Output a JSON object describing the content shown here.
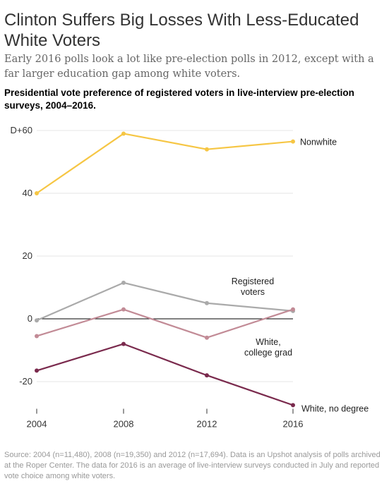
{
  "headline": "Clinton Suffers Big Losses With Less-Educated White Voters",
  "dek": "Early 2016 polls look a lot like pre-election polls in 2012, except with a far larger education gap among white voters.",
  "chart_data": {
    "type": "line",
    "title": "Presidential vote preference of registered voters in live-interview pre-election surveys, 2004–2016.",
    "x": [
      "2004",
      "2008",
      "2012",
      "2016"
    ],
    "ylim": [
      -30,
      60
    ],
    "yticks": [
      60,
      40,
      20,
      0,
      -20
    ],
    "ytick_labels": [
      "D+60",
      "40",
      "20",
      "0",
      "-20"
    ],
    "zero_line": true,
    "series": [
      {
        "name": "Nonwhite",
        "label_lines": [
          "Nonwhite"
        ],
        "color": "#f6c644",
        "values": [
          40,
          59,
          54,
          56.5
        ]
      },
      {
        "name": "Registered voters",
        "label_lines": [
          "Registered",
          "voters"
        ],
        "color": "#aaaaaa",
        "values": [
          -0.5,
          11.5,
          5,
          2.5
        ]
      },
      {
        "name": "White, college grad",
        "label_lines": [
          "White,",
          "college grad"
        ],
        "color": "#c28b96",
        "values": [
          -5.5,
          3,
          -6,
          3
        ]
      },
      {
        "name": "White, no degree",
        "label_lines": [
          "White, no degree"
        ],
        "color": "#7a2a4d",
        "values": [
          -16.5,
          -8,
          -18,
          -27.5
        ]
      }
    ]
  },
  "source": "Source: 2004 (n=11,480), 2008 (n=19,350) and 2012 (n=17,694). Data is an Upshot analysis of polls archived at the Roper Center. The data for 2016 is an average of live-interview surveys conducted in July and reported vote choice among white voters."
}
